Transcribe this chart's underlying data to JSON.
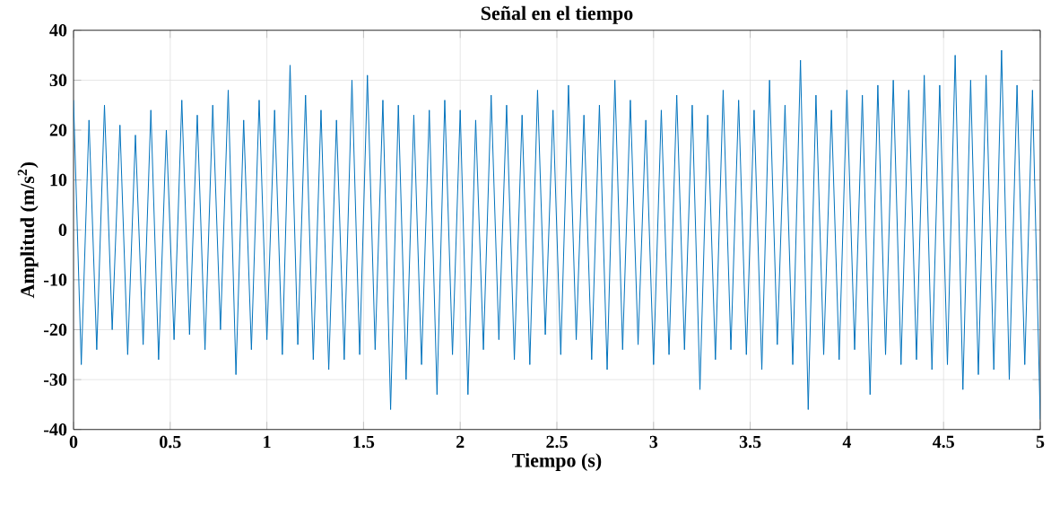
{
  "chart_data": {
    "type": "line",
    "title": "Señal en el tiempo",
    "xlabel": "Tiempo (s)",
    "ylabel": "Amplitud (m/s$^{2}$)",
    "x": [
      0,
      0.04,
      0.08,
      0.12,
      0.16,
      0.2,
      0.24,
      0.28,
      0.32,
      0.36,
      0.4,
      0.44,
      0.48,
      0.52,
      0.56,
      0.6,
      0.64,
      0.68,
      0.72,
      0.76,
      0.8,
      0.84,
      0.88,
      0.92,
      0.96,
      1,
      1.04,
      1.08,
      1.12,
      1.16,
      1.2,
      1.24,
      1.28,
      1.32,
      1.36,
      1.4,
      1.44,
      1.48,
      1.52,
      1.56,
      1.6,
      1.64,
      1.68,
      1.72,
      1.76,
      1.8,
      1.84,
      1.88,
      1.92,
      1.96,
      2,
      2.04,
      2.08,
      2.12,
      2.16,
      2.2,
      2.24,
      2.28,
      2.32,
      2.36,
      2.4,
      2.44,
      2.48,
      2.52,
      2.56,
      2.6,
      2.64,
      2.68,
      2.72,
      2.76,
      2.8,
      2.84,
      2.88,
      2.92,
      2.96,
      3,
      3.04,
      3.08,
      3.12,
      3.16,
      3.2,
      3.24,
      3.28,
      3.32,
      3.36,
      3.4,
      3.44,
      3.48,
      3.52,
      3.56,
      3.6,
      3.64,
      3.68,
      3.72,
      3.76,
      3.8,
      3.84,
      3.88,
      3.92,
      3.96,
      4,
      4.04,
      4.08,
      4.12,
      4.16,
      4.2,
      4.24,
      4.28,
      4.32,
      4.36,
      4.4,
      4.44,
      4.48,
      4.52,
      4.56,
      4.6,
      4.64,
      4.68,
      4.72,
      4.76,
      4.8,
      4.84,
      4.88,
      4.92,
      4.96,
      5
    ],
    "series": [
      {
        "color": "#0072bd",
        "values": [
          26,
          -27,
          22,
          -24,
          25,
          -20,
          21,
          -25,
          19,
          -23,
          24,
          -26,
          20,
          -22,
          26,
          -21,
          23,
          -24,
          25,
          -20,
          28,
          -29,
          22,
          -24,
          26,
          -22,
          24,
          -25,
          33,
          -23,
          27,
          -26,
          24,
          -28,
          22,
          -26,
          30,
          -25,
          31,
          -24,
          26,
          -36,
          25,
          -30,
          23,
          -27,
          24,
          -33,
          26,
          -25,
          24,
          -33,
          22,
          -24,
          27,
          -22,
          25,
          -26,
          23,
          -27,
          28,
          -21,
          24,
          -25,
          29,
          -22,
          23,
          -26,
          25,
          -28,
          30,
          -24,
          26,
          -23,
          22,
          -27,
          24,
          -25,
          27,
          -24,
          25,
          -32,
          23,
          -26,
          28,
          -24,
          26,
          -25,
          24,
          -28,
          30,
          -23,
          25,
          -27,
          34,
          -36,
          27,
          -25,
          24,
          -26,
          28,
          -24,
          27,
          -33,
          29,
          -25,
          30,
          -27,
          28,
          -26,
          31,
          -28,
          29,
          -27,
          35,
          -32,
          30,
          -29,
          31,
          -28,
          36,
          -30,
          29,
          -27,
          28,
          -38
        ]
      }
    ],
    "xlim": [
      0,
      5
    ],
    "ylim": [
      -40,
      40
    ],
    "xticks": [
      0,
      0.5,
      1,
      1.5,
      2,
      2.5,
      3,
      3.5,
      4,
      4.5,
      5
    ],
    "yticks": [
      -40,
      -30,
      -20,
      -10,
      0,
      10,
      20,
      30,
      40
    ],
    "grid": true
  }
}
